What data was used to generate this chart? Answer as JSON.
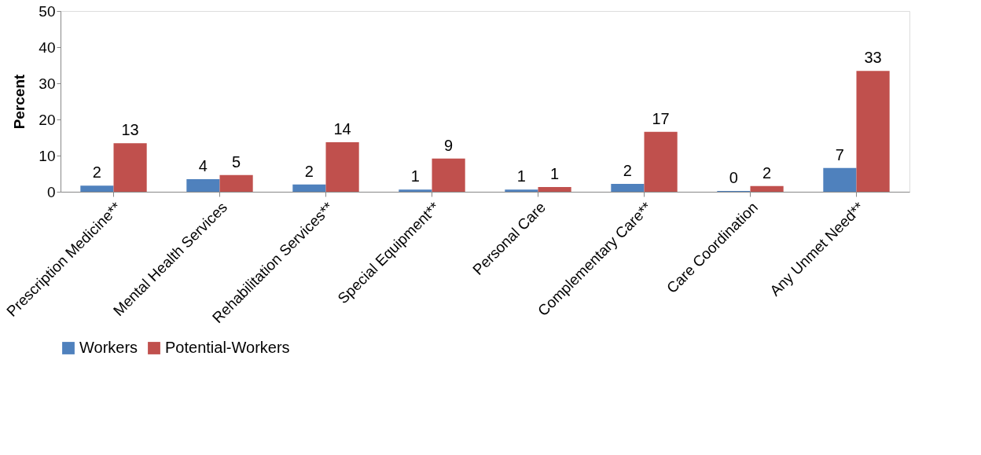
{
  "chart_data": {
    "type": "bar",
    "ylabel": "Percent",
    "categories": [
      "Prescription Medicine**",
      "Mental Health Services",
      "Rehabilitation Services**",
      "Special Equipment**",
      "Personal Care",
      "Complementary Care**",
      "Care Coordination",
      "Any  Unmet Need**"
    ],
    "series": [
      {
        "name": "Workers",
        "color": "#4f81bd",
        "values": [
          1.7,
          3.5,
          2.0,
          0.6,
          0.6,
          2.2,
          0.2,
          6.6
        ],
        "value_labels": [
          "2",
          "4",
          "2",
          "1",
          "1",
          "2",
          "0",
          "7"
        ]
      },
      {
        "name": "Potential-Workers",
        "color": "#c0504d",
        "values": [
          13.4,
          4.6,
          13.7,
          9.2,
          1.3,
          16.6,
          1.6,
          33.4
        ],
        "value_labels": [
          "13",
          "5",
          "14",
          "9",
          "1",
          "17",
          "2",
          "33"
        ]
      }
    ],
    "ylim": [
      0,
      50
    ],
    "yticks": [
      0,
      10,
      20,
      30,
      40,
      50
    ],
    "grid": false,
    "legend": "bottom"
  }
}
